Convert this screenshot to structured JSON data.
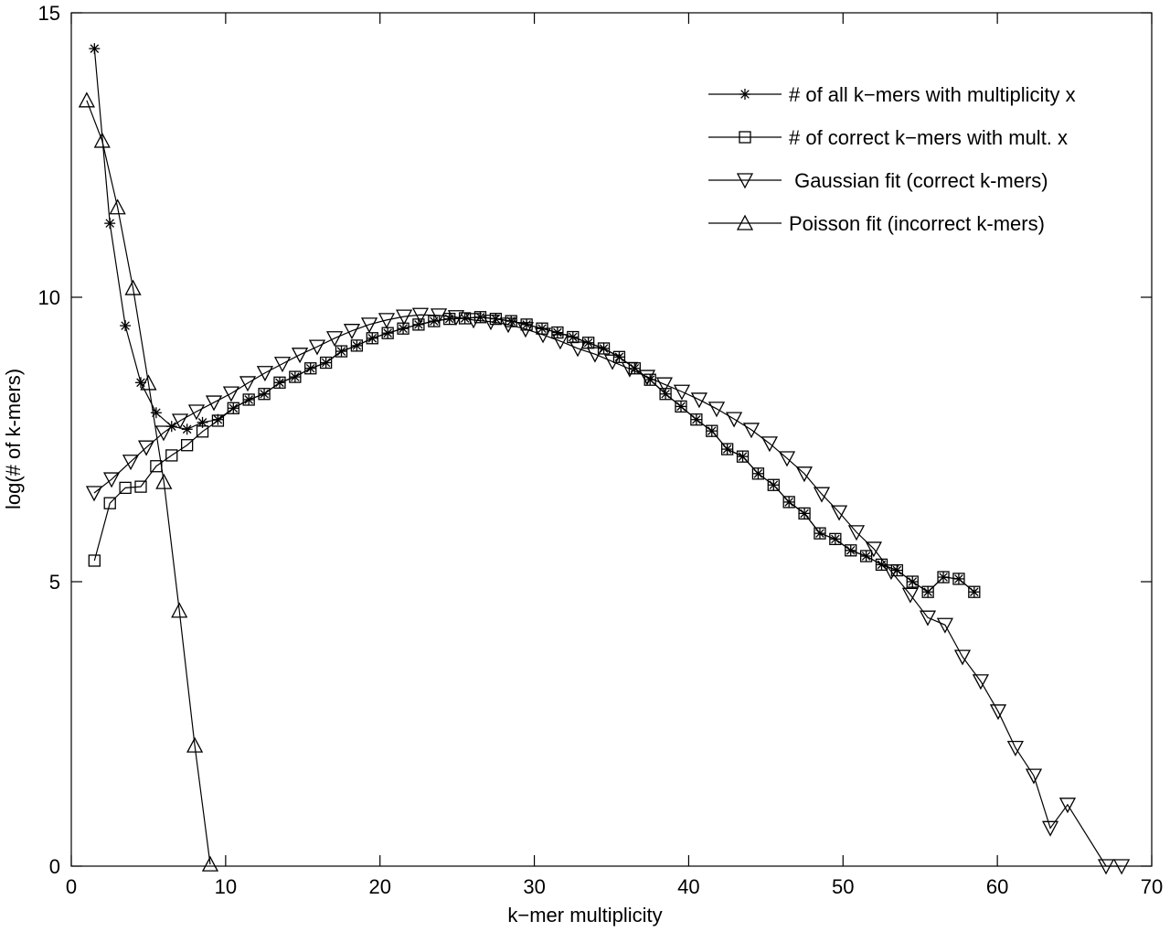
{
  "chart_data": {
    "type": "line",
    "xlabel": "k−mer multiplicity",
    "ylabel": "log(# of k-mers)",
    "xlim": [
      0,
      70
    ],
    "ylim": [
      0,
      15
    ],
    "xticks": [
      0,
      10,
      20,
      30,
      40,
      50,
      60,
      70
    ],
    "yticks": [
      0,
      5,
      10,
      15
    ],
    "grid": false,
    "legend": "upper right",
    "series": [
      {
        "name": "# of all k−mers with multiplicity x",
        "color": "#000000",
        "marker": "asterisk",
        "x": [
          1.5,
          2.5,
          3.5,
          4.5,
          5.5,
          6.5,
          7.5,
          8.5,
          9.5,
          10.5,
          11.5,
          12.5,
          13.5,
          14.5,
          15.5,
          16.5,
          17.5,
          18.5,
          19.5,
          20.5,
          21.5,
          22.5,
          23.5,
          24.5,
          25.5,
          26.5,
          27.5,
          28.5,
          29.5,
          30.5,
          31.5,
          32.5,
          33.5,
          34.5,
          35.5,
          36.5,
          37.5,
          38.5,
          39.5,
          40.5,
          41.5,
          42.5,
          43.5,
          44.5,
          45.5,
          46.5,
          47.5,
          48.5,
          49.5,
          50.5,
          51.5,
          52.5,
          53.5,
          54.5,
          55.5,
          56.5,
          57.5,
          58.5
        ],
        "values": [
          14.37,
          11.3,
          9.5,
          8.5,
          7.97,
          7.73,
          7.68,
          7.8,
          7.85,
          8.05,
          8.2,
          8.3,
          8.5,
          8.6,
          8.75,
          8.85,
          9.05,
          9.15,
          9.28,
          9.37,
          9.45,
          9.52,
          9.58,
          9.62,
          9.63,
          9.65,
          9.62,
          9.58,
          9.52,
          9.45,
          9.38,
          9.3,
          9.2,
          9.1,
          8.95,
          8.75,
          8.55,
          8.3,
          8.08,
          7.85,
          7.65,
          7.33,
          7.2,
          6.9,
          6.7,
          6.4,
          6.2,
          5.85,
          5.75,
          5.55,
          5.45,
          5.3,
          5.2,
          5.0,
          4.82,
          5.08,
          5.05,
          4.82
        ]
      },
      {
        "name": "# of correct k−mers with mult. x",
        "color": "#000000",
        "marker": "square",
        "x": [
          1.5,
          2.5,
          3.5,
          4.5,
          5.5,
          6.5,
          7.5,
          8.5,
          9.5,
          10.5,
          11.5,
          12.5,
          13.5,
          14.5,
          15.5,
          16.5,
          17.5,
          18.5,
          19.5,
          20.5,
          21.5,
          22.5,
          23.5,
          24.5,
          25.5,
          26.5,
          27.5,
          28.5,
          29.5,
          30.5,
          31.5,
          32.5,
          33.5,
          34.5,
          35.5,
          36.5,
          37.5,
          38.5,
          39.5,
          40.5,
          41.5,
          42.5,
          43.5,
          44.5,
          45.5,
          46.5,
          47.5,
          48.5,
          49.5,
          50.5,
          51.5,
          52.5,
          53.5,
          54.5,
          55.5,
          56.5,
          57.5,
          58.5
        ],
        "values": [
          5.37,
          6.38,
          6.65,
          6.67,
          7.03,
          7.22,
          7.4,
          7.64,
          7.83,
          8.05,
          8.2,
          8.3,
          8.5,
          8.6,
          8.75,
          8.85,
          9.05,
          9.15,
          9.28,
          9.37,
          9.45,
          9.52,
          9.58,
          9.62,
          9.63,
          9.65,
          9.62,
          9.58,
          9.52,
          9.45,
          9.38,
          9.3,
          9.2,
          9.1,
          8.95,
          8.75,
          8.55,
          8.3,
          8.08,
          7.85,
          7.65,
          7.33,
          7.2,
          6.9,
          6.7,
          6.4,
          6.2,
          5.85,
          5.75,
          5.55,
          5.45,
          5.3,
          5.2,
          5.0,
          4.82,
          5.08,
          5.05,
          4.82
        ]
      },
      {
        "name": " Gaussian fit (correct k-mers)",
        "color": "#000000",
        "marker": "triangle-down",
        "x": [
          1.48,
          2.61,
          3.85,
          4.86,
          5.98,
          7.05,
          8.11,
          9.24,
          10.36,
          11.43,
          12.55,
          13.68,
          14.81,
          15.93,
          17.06,
          18.18,
          19.31,
          20.43,
          21.56,
          22.62,
          23.81,
          24.93,
          26.06,
          27.18,
          28.31,
          29.43,
          30.56,
          31.68,
          32.81,
          33.93,
          35.06,
          36.18,
          37.31,
          38.43,
          39.56,
          40.68,
          41.81,
          42.94,
          44.06,
          45.24,
          46.37,
          47.49,
          48.62,
          49.75,
          50.87,
          51.99,
          53.12,
          54.36,
          55.49,
          56.61,
          57.74,
          58.92,
          60.05,
          61.17,
          62.36,
          63.43,
          64.55,
          67.04,
          68.05
        ],
        "values": [
          6.56,
          6.8,
          7.11,
          7.36,
          7.62,
          7.83,
          7.99,
          8.15,
          8.31,
          8.49,
          8.67,
          8.83,
          8.99,
          9.13,
          9.28,
          9.41,
          9.52,
          9.6,
          9.66,
          9.69,
          9.68,
          9.65,
          9.6,
          9.57,
          9.52,
          9.44,
          9.34,
          9.23,
          9.1,
          9.0,
          8.87,
          8.74,
          8.6,
          8.47,
          8.34,
          8.2,
          8.04,
          7.86,
          7.67,
          7.43,
          7.17,
          6.9,
          6.54,
          6.22,
          5.87,
          5.58,
          5.18,
          4.77,
          4.37,
          4.24,
          3.68,
          3.25,
          2.72,
          2.08,
          1.59,
          0.67,
          1.08,
          0,
          0
        ]
      },
      {
        "name": "Poisson fit (incorrect k-mers)",
        "color": "#000000",
        "marker": "triangle-up",
        "x": [
          1,
          2,
          3,
          4,
          5,
          6,
          7,
          8,
          9
        ],
        "values": [
          13.46,
          12.75,
          11.58,
          10.16,
          8.49,
          6.75,
          4.49,
          2.12,
          0.03
        ]
      }
    ]
  }
}
